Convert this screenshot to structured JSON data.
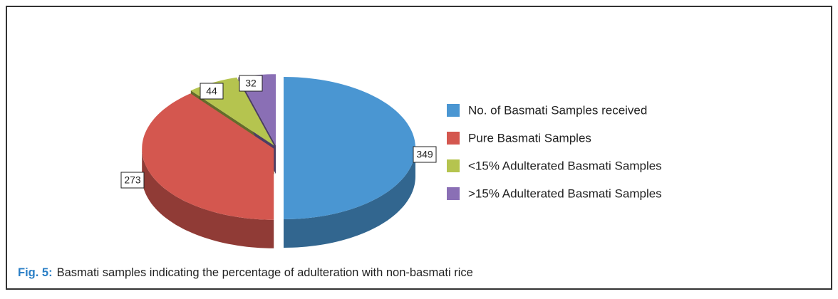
{
  "chart_data": {
    "type": "pie",
    "categories": [
      "No. of Basmati Samples received",
      "Pure Basmati Samples",
      "<15% Adulterated Basmati Samples",
      ">15% Adulterated Basmati Samples"
    ],
    "values": [
      349,
      273,
      44,
      32
    ],
    "colors": [
      "#4a96d2",
      "#d4574f",
      "#b5c44f",
      "#8a6fb5"
    ],
    "legend": "right",
    "fig_label": "Fig. 5:",
    "caption": "Basmati samples indicating the percentage of adulteration with non-basmati rice"
  }
}
